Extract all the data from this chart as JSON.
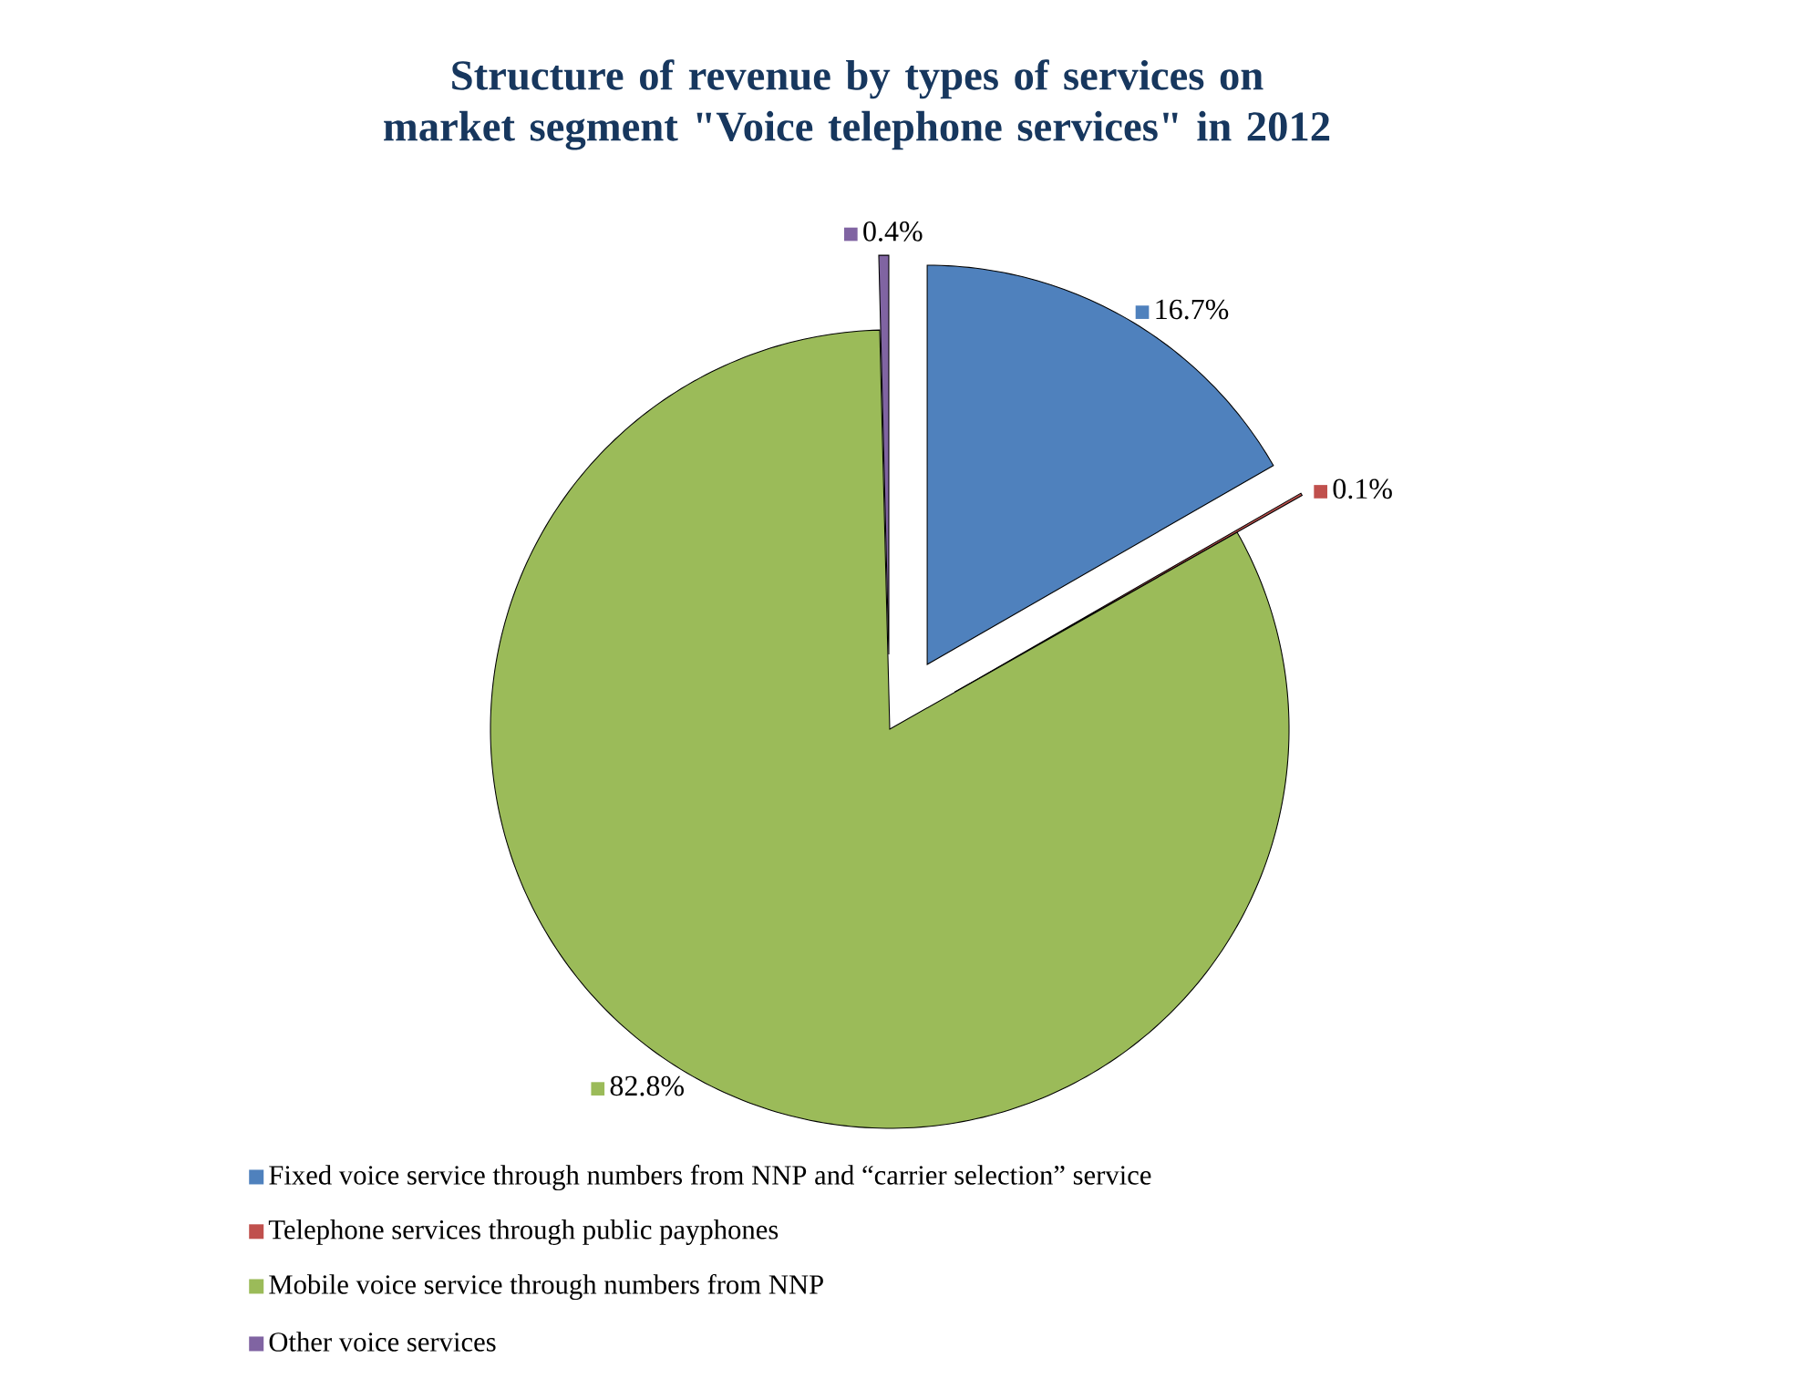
{
  "chart_data": {
    "type": "pie",
    "title": "Structure of revenue by types of services on market segment \"Voice telephone services\" in 2012",
    "categories": [
      "Fixed voice service through numbers from NNP and “carrier selection” service",
      "Telephone services through public payphones",
      "Mobile voice service through numbers from NNP",
      "Other voice services"
    ],
    "values": [
      16.7,
      0.1,
      82.8,
      0.4
    ],
    "value_labels": [
      "16.7%",
      "0.1%",
      "82.8%",
      "0.4%"
    ],
    "colors": [
      "#4f81bd",
      "#c0504d",
      "#9bbb59",
      "#8064a2"
    ],
    "legend": "bottom"
  }
}
